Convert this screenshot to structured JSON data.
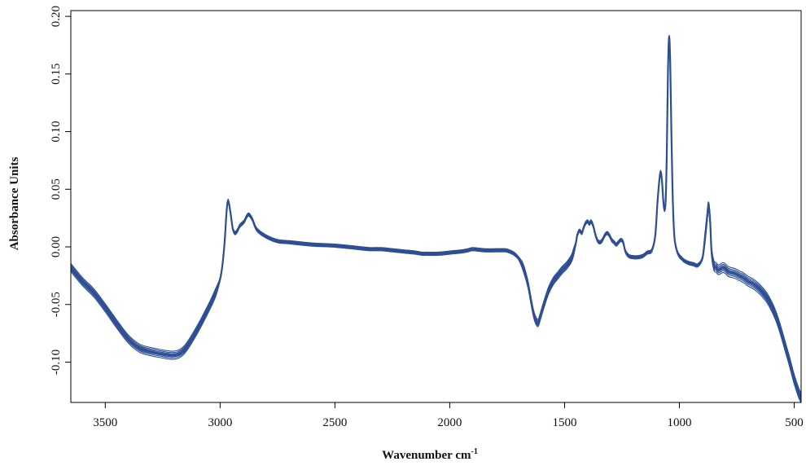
{
  "chart_data": {
    "type": "line",
    "title": "",
    "xlabel": "Wavenumber cm",
    "xlabel_superscript": "-1",
    "ylabel": "Absorbance Units",
    "x_reversed": true,
    "xlim": [
      3650,
      470
    ],
    "ylim": [
      -0.135,
      0.205
    ],
    "x_ticks": [
      3500,
      3000,
      2500,
      2000,
      1500,
      1000,
      500
    ],
    "y_ticks": [
      -0.1,
      -0.05,
      0.0,
      0.05,
      0.1,
      0.15,
      0.2
    ],
    "x_tick_labels": [
      "3500",
      "3000",
      "2500",
      "2000",
      "1500",
      "1000",
      "500"
    ],
    "y_tick_labels": [
      "-0.10",
      "-0.05",
      "0.00",
      "0.05",
      "0.10",
      "0.15",
      "0.20"
    ],
    "grid": false,
    "legend": "none",
    "line_color": "#2f4f93",
    "series": [
      {
        "x": [
          3650,
          3600,
          3550,
          3500,
          3450,
          3400,
          3350,
          3300,
          3250,
          3220,
          3200,
          3180,
          3150,
          3100,
          3050,
          3020,
          3000,
          2990,
          2980,
          2972,
          2965,
          2955,
          2945,
          2935,
          2925,
          2915,
          2905,
          2895,
          2885,
          2875,
          2860,
          2840,
          2800,
          2750,
          2700,
          2600,
          2500,
          2400,
          2350,
          2300,
          2250,
          2200,
          2150,
          2120,
          2100,
          2050,
          2000,
          1950,
          1920,
          1900,
          1850,
          1800,
          1760,
          1740,
          1720,
          1700,
          1680,
          1660,
          1645,
          1635,
          1625,
          1615,
          1605,
          1590,
          1570,
          1550,
          1530,
          1510,
          1490,
          1470,
          1460,
          1450,
          1445,
          1435,
          1425,
          1418,
          1410,
          1400,
          1392,
          1385,
          1375,
          1365,
          1355,
          1345,
          1335,
          1325,
          1315,
          1305,
          1295,
          1285,
          1275,
          1265,
          1255,
          1245,
          1235,
          1220,
          1200,
          1180,
          1160,
          1140,
          1120,
          1105,
          1095,
          1085,
          1080,
          1075,
          1070,
          1065,
          1060,
          1055,
          1050,
          1045,
          1040,
          1035,
          1030,
          1025,
          1020,
          1010,
          1000,
          990,
          980,
          960,
          940,
          920,
          900,
          890,
          880,
          875,
          870,
          865,
          860,
          850,
          840,
          830,
          820,
          810,
          800,
          790,
          780,
          760,
          740,
          720,
          700,
          680,
          660,
          640,
          620,
          600,
          580,
          560,
          540,
          520,
          500,
          480,
          470
        ],
        "y": [
          -0.018,
          -0.03,
          -0.04,
          -0.053,
          -0.067,
          -0.08,
          -0.088,
          -0.091,
          -0.093,
          -0.094,
          -0.094,
          -0.093,
          -0.088,
          -0.072,
          -0.053,
          -0.04,
          -0.028,
          -0.016,
          0.005,
          0.03,
          0.04,
          0.03,
          0.016,
          0.012,
          0.014,
          0.018,
          0.02,
          0.022,
          0.026,
          0.028,
          0.024,
          0.015,
          0.009,
          0.005,
          0.004,
          0.002,
          0.001,
          -0.001,
          -0.002,
          -0.002,
          -0.003,
          -0.004,
          -0.005,
          -0.006,
          -0.006,
          -0.006,
          -0.005,
          -0.004,
          -0.003,
          -0.002,
          -0.003,
          -0.003,
          -0.003,
          -0.004,
          -0.006,
          -0.01,
          -0.018,
          -0.032,
          -0.048,
          -0.058,
          -0.064,
          -0.066,
          -0.06,
          -0.05,
          -0.038,
          -0.03,
          -0.025,
          -0.02,
          -0.016,
          -0.01,
          -0.004,
          0.004,
          0.01,
          0.014,
          0.012,
          0.016,
          0.02,
          0.022,
          0.02,
          0.022,
          0.018,
          0.01,
          0.005,
          0.004,
          0.006,
          0.01,
          0.012,
          0.01,
          0.006,
          0.004,
          0.002,
          0.004,
          0.006,
          0.004,
          -0.004,
          -0.008,
          -0.009,
          -0.009,
          -0.008,
          -0.005,
          -0.003,
          0.01,
          0.04,
          0.062,
          0.064,
          0.055,
          0.04,
          0.032,
          0.04,
          0.08,
          0.15,
          0.182,
          0.16,
          0.1,
          0.05,
          0.02,
          0.005,
          -0.004,
          -0.008,
          -0.01,
          -0.012,
          -0.014,
          -0.015,
          -0.016,
          -0.01,
          0.005,
          0.024,
          0.034,
          0.032,
          0.018,
          -0.004,
          -0.016,
          -0.018,
          -0.02,
          -0.019,
          -0.018,
          -0.019,
          -0.021,
          -0.022,
          -0.023,
          -0.025,
          -0.027,
          -0.03,
          -0.032,
          -0.035,
          -0.039,
          -0.044,
          -0.051,
          -0.06,
          -0.072,
          -0.086,
          -0.1,
          -0.115,
          -0.127,
          -0.131
        ]
      }
    ]
  }
}
